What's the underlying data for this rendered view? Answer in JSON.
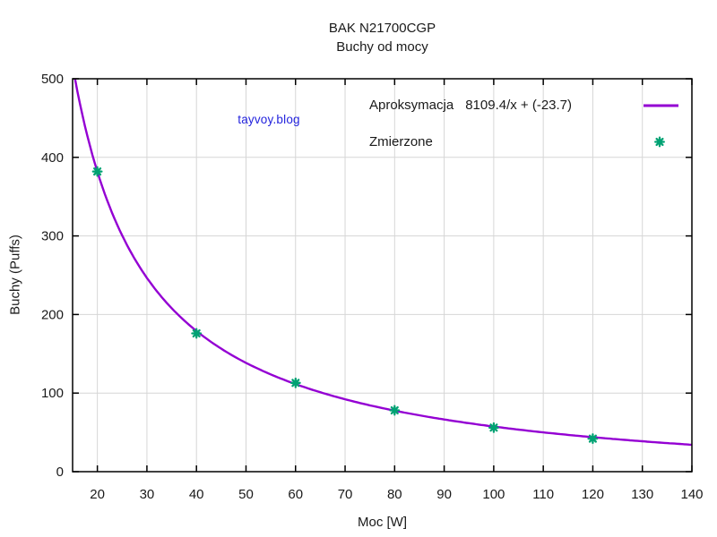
{
  "chart_data": {
    "type": "line",
    "title": "BAK N21700CGP",
    "subtitle": "Buchy od mocy",
    "xlabel": "Moc [W]",
    "ylabel": "Buchy (Puffs)",
    "xlim": [
      15,
      140
    ],
    "ylim": [
      0,
      500
    ],
    "xticks": [
      20,
      30,
      40,
      50,
      60,
      70,
      80,
      90,
      100,
      110,
      120,
      130,
      140
    ],
    "yticks": [
      0,
      100,
      200,
      300,
      400,
      500
    ],
    "grid": true,
    "legend_position": "top-right",
    "watermark": {
      "text": "tayvoy.blog",
      "color": "#2323dd"
    },
    "colors": {
      "background": "#ffffff",
      "grid": "#d6d6d6",
      "frame": "#000000",
      "text": "#1a1a1a"
    },
    "series": [
      {
        "name": "Aproksymacja",
        "formula_label": "8109.4/x + (-23.7)",
        "type": "line",
        "color": "#9400d3",
        "formula": {
          "expr": "a/x + b",
          "a": 8109.4,
          "b": -23.7
        }
      },
      {
        "name": "Zmierzone",
        "type": "scatter",
        "marker": "asterisk",
        "color": "#00a273",
        "x": [
          20,
          40,
          60,
          80,
          100,
          120
        ],
        "y": [
          382,
          176,
          113,
          78,
          56,
          42
        ]
      }
    ]
  }
}
